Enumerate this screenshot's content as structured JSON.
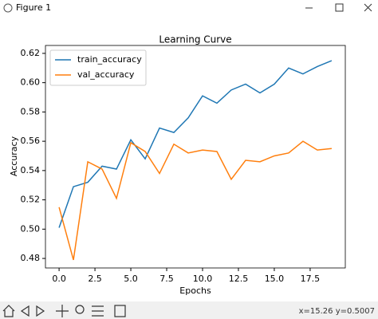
{
  "window": {
    "title": "Figure 1",
    "status": "x=15.26 y=0.5007"
  },
  "chart_data": {
    "type": "line",
    "title": "Learning Curve",
    "xlabel": "Epochs",
    "ylabel": "Accuracy",
    "x": [
      0,
      1,
      2,
      3,
      4,
      5,
      6,
      7,
      8,
      9,
      10,
      11,
      12,
      13,
      14,
      15,
      16,
      17,
      18,
      19
    ],
    "series": [
      {
        "name": "train_accuracy",
        "color": "#1f77b4",
        "values": [
          0.501,
          0.529,
          0.532,
          0.543,
          0.541,
          0.561,
          0.548,
          0.569,
          0.566,
          0.576,
          0.591,
          0.586,
          0.595,
          0.599,
          0.593,
          0.599,
          0.61,
          0.606,
          0.611,
          0.615
        ]
      },
      {
        "name": "val_accuracy",
        "color": "#ff7f0e",
        "values": [
          0.515,
          0.479,
          0.546,
          0.541,
          0.521,
          0.559,
          0.553,
          0.538,
          0.558,
          0.552,
          0.554,
          0.553,
          0.534,
          0.547,
          0.546,
          0.55,
          0.552,
          0.56,
          0.554,
          0.555
        ]
      }
    ],
    "xlim": [
      -0.95,
      19.95
    ],
    "xticks": [
      {
        "value": 0,
        "label": "0.0"
      },
      {
        "value": 2.5,
        "label": "2.5"
      },
      {
        "value": 5,
        "label": "5.0"
      },
      {
        "value": 7.5,
        "label": "7.5"
      },
      {
        "value": 10,
        "label": "10.0"
      },
      {
        "value": 12.5,
        "label": "12.5"
      },
      {
        "value": 15,
        "label": "15.0"
      },
      {
        "value": 17.5,
        "label": "17.5"
      }
    ],
    "ylim": [
      0.4735,
      0.6254
    ],
    "yticks": [
      0.48,
      {
        "value": 0.5,
        "label": "0.50"
      },
      0.52,
      0.54,
      0.56,
      0.58,
      {
        "value": 0.6,
        "label": "0.60"
      },
      0.62
    ],
    "legend": "upper left",
    "grid": false
  }
}
